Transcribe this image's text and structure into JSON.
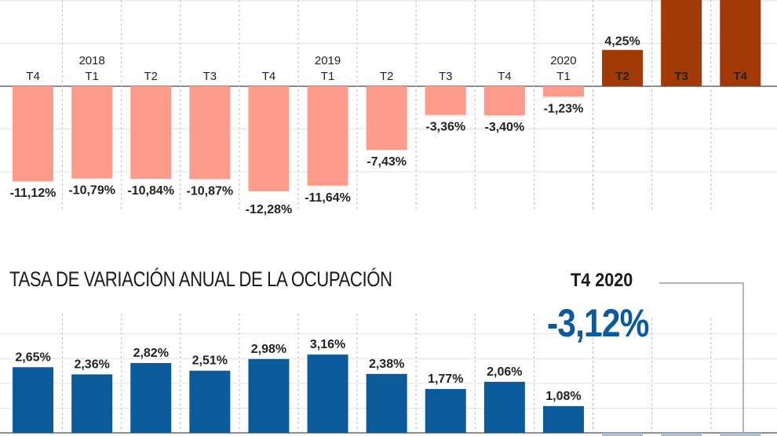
{
  "chart_data": [
    {
      "type": "bar",
      "title": "",
      "categories": [
        "T4",
        "2018 T1",
        "T2",
        "T3",
        "T4",
        "2019 T1",
        "T2",
        "T3",
        "T4",
        "2020 T1",
        "T2",
        "T3",
        "T4"
      ],
      "quarter_labels": [
        "T4",
        "T1",
        "T2",
        "T3",
        "T4",
        "T1",
        "T2",
        "T3",
        "T4",
        "T1",
        "T2",
        "T3",
        "T4"
      ],
      "year_labels": [
        "",
        "2018",
        "",
        "",
        "",
        "2019",
        "",
        "",
        "",
        "2020",
        "",
        "",
        ""
      ],
      "values": [
        -11.12,
        -10.79,
        -10.84,
        -10.87,
        -12.28,
        -11.64,
        -7.43,
        -3.36,
        -3.4,
        -1.23,
        4.25,
        null,
        null
      ],
      "value_labels": [
        "-11,12%",
        "-10,79%",
        "-10,84%",
        "-10,87%",
        "-12,28%",
        "-11,64%",
        "-7,43%",
        "-3,36%",
        "-3,40%",
        "-1,23%",
        "4,25%",
        "",
        ""
      ],
      "highlighted": [
        false,
        false,
        false,
        false,
        false,
        false,
        false,
        false,
        false,
        false,
        true,
        true,
        true
      ],
      "colors": {
        "negative": "#fd9c8c",
        "highlight": "#a23a08",
        "highlight_label": "#ffffff"
      },
      "ylim": [
        -15,
        10
      ],
      "grid": true,
      "note": "T3 and T4 2020 bars extend above the visible area"
    },
    {
      "type": "bar",
      "title": "TASA DE VARIACIÓN ANUAL DE LA OCUPACIÓN",
      "categories": [
        "T4",
        "2018 T1",
        "T2",
        "T3",
        "T4",
        "2019 T1",
        "T2",
        "T3",
        "T4",
        "2020 T1",
        "T2",
        "T3",
        "T4"
      ],
      "values": [
        2.65,
        2.36,
        2.82,
        2.51,
        2.98,
        3.16,
        2.38,
        1.77,
        2.06,
        1.08,
        null,
        null,
        null
      ],
      "value_labels": [
        "2,65%",
        "2,36%",
        "2,82%",
        "2,51%",
        "2,98%",
        "3,16%",
        "2,38%",
        "1,77%",
        "2,06%",
        "1,08%",
        "",
        "",
        ""
      ],
      "colors": {
        "positive": "#0b5a9c",
        "faded": "#a9bfd6"
      },
      "ylim": [
        0,
        4.5
      ],
      "grid": true,
      "callout": {
        "label": "T4 2020",
        "value": "-3,12%",
        "color": "#0b5a9c"
      }
    }
  ]
}
